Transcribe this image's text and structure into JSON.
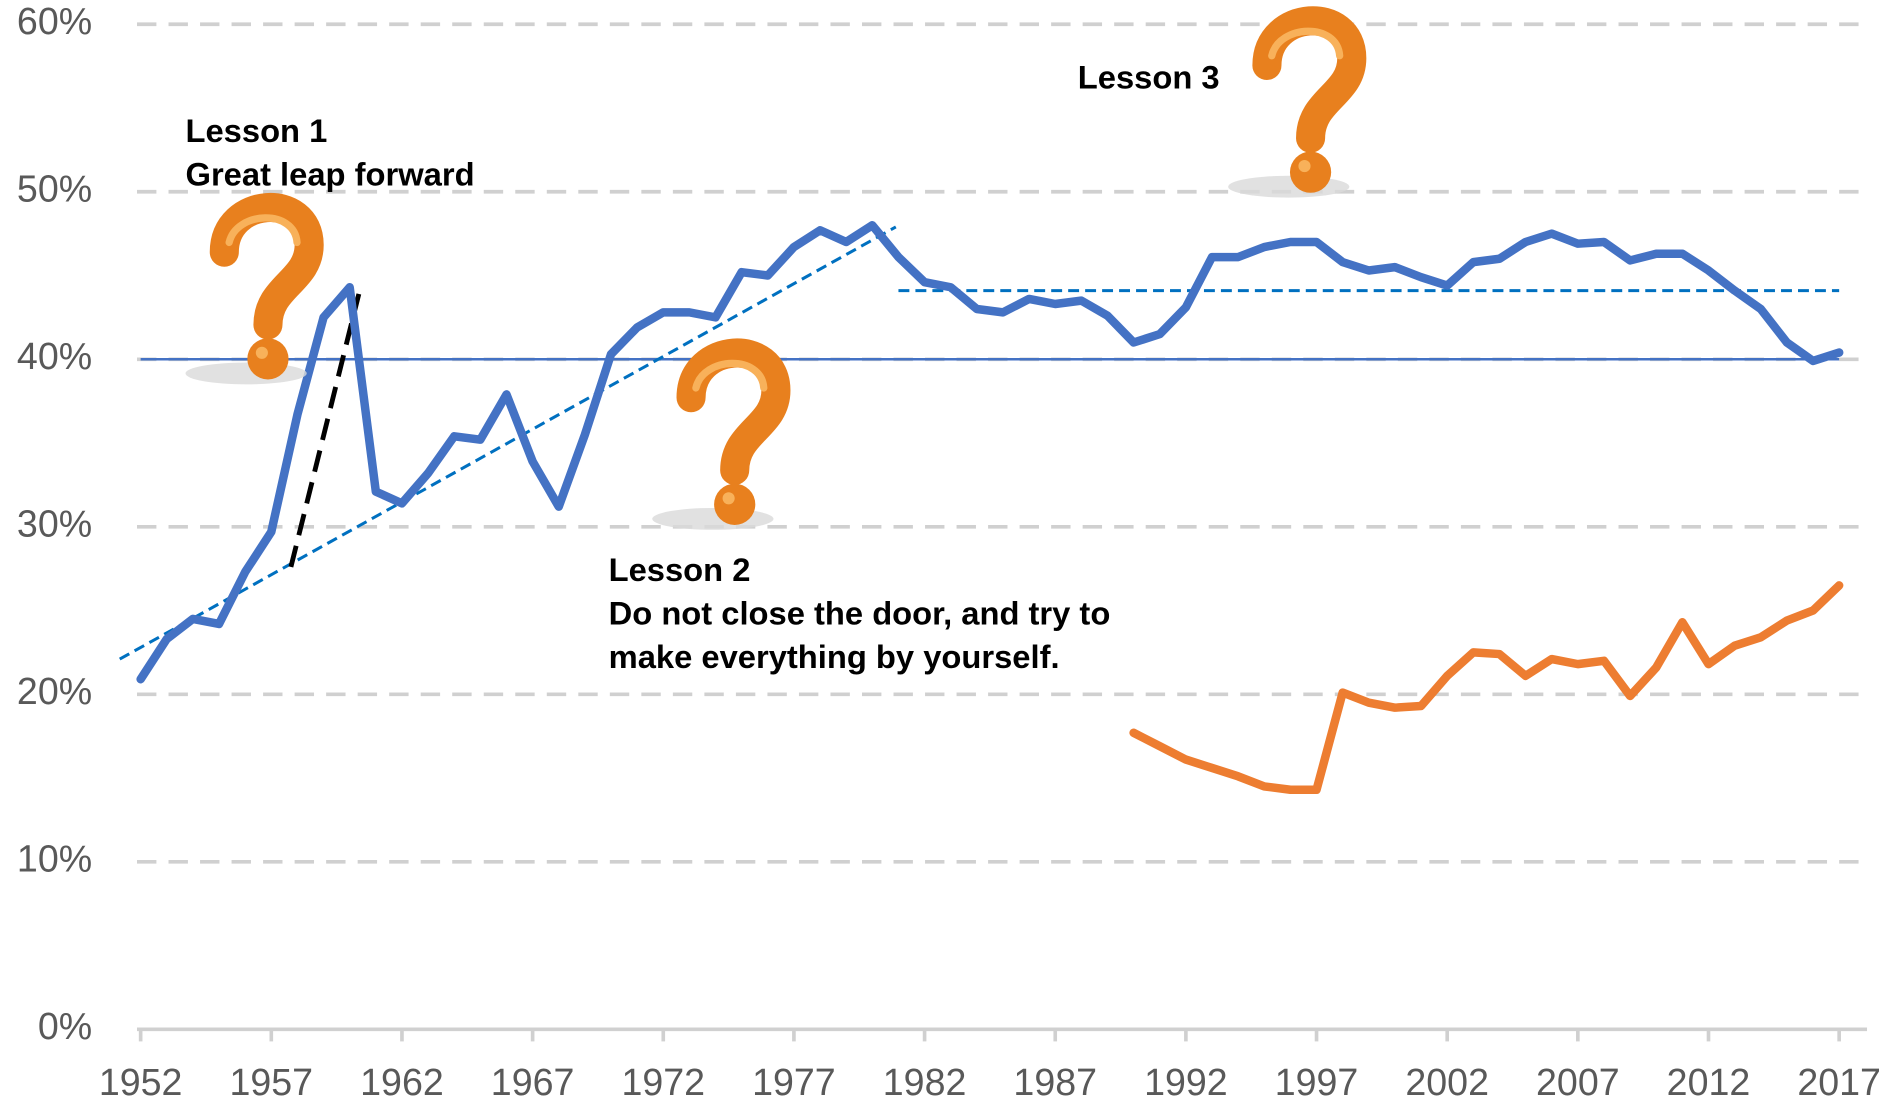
{
  "chart_data": {
    "type": "line",
    "x": [
      1952,
      1953,
      1954,
      1955,
      1956,
      1957,
      1958,
      1959,
      1960,
      1961,
      1962,
      1963,
      1964,
      1965,
      1966,
      1967,
      1968,
      1969,
      1970,
      1971,
      1972,
      1973,
      1974,
      1975,
      1976,
      1977,
      1978,
      1979,
      1980,
      1981,
      1982,
      1983,
      1984,
      1985,
      1986,
      1987,
      1988,
      1989,
      1990,
      1991,
      1992,
      1993,
      1994,
      1995,
      1996,
      1997,
      1998,
      1999,
      2000,
      2001,
      2002,
      2003,
      2004,
      2005,
      2006,
      2007,
      2008,
      2009,
      2010,
      2011,
      2012,
      2013,
      2014,
      2015,
      2016,
      2017
    ],
    "series": [
      {
        "color": "#4472c4",
        "values": [
          20.9,
          23.3,
          24.5,
          24.2,
          27.3,
          29.7,
          36.7,
          42.5,
          44.3,
          32.1,
          31.4,
          33.2,
          35.4,
          35.2,
          37.9,
          33.9,
          31.2,
          35.5,
          40.3,
          41.9,
          42.8,
          42.8,
          42.5,
          45.2,
          45.0,
          46.7,
          47.7,
          47.0,
          48.0,
          46.1,
          44.6,
          44.3,
          43.0,
          42.8,
          43.6,
          43.3,
          43.5,
          42.6,
          41.0,
          41.5,
          43.1,
          46.1,
          46.1,
          46.7,
          47.0,
          47.0,
          45.8,
          45.3,
          45.5,
          44.9,
          44.4,
          45.8,
          46.0,
          47.0,
          47.5,
          46.9,
          47.0,
          45.9,
          46.3,
          46.3,
          45.3,
          44.1,
          43.0,
          41.0,
          39.9,
          40.4
        ]
      },
      {
        "color": "#ed7d31",
        "values": [
          null,
          null,
          null,
          null,
          null,
          null,
          null,
          null,
          null,
          null,
          null,
          null,
          null,
          null,
          null,
          null,
          null,
          null,
          null,
          null,
          null,
          null,
          null,
          null,
          null,
          null,
          null,
          null,
          null,
          null,
          null,
          null,
          null,
          null,
          null,
          null,
          null,
          null,
          17.7,
          16.9,
          16.1,
          15.6,
          15.1,
          14.5,
          14.3,
          14.3,
          20.1,
          19.5,
          19.2,
          19.3,
          21.1,
          22.5,
          22.4,
          21.1,
          22.1,
          21.8,
          22.0,
          19.9,
          21.6,
          24.3,
          21.8,
          22.9,
          23.4,
          24.4,
          25.0,
          26.5
        ]
      }
    ],
    "reference_lines": [
      {
        "x": [
          1952,
          2017
        ],
        "y": [
          40,
          40
        ],
        "color": "#4472c4",
        "dash": false
      },
      {
        "x": [
          1951.2,
          1980.9
        ],
        "y": [
          22.1,
          47.9
        ],
        "color": "#0070c0",
        "dash": true
      },
      {
        "x": [
          1981,
          2017
        ],
        "y": [
          44.1,
          44.1
        ],
        "color": "#0070c0",
        "dash": true
      },
      {
        "x": [
          1957.75,
          1960.35
        ],
        "y": [
          27.6,
          43.9
        ],
        "color": "#000000",
        "dash": true
      }
    ],
    "annotations": [
      [
        "Lesson 1",
        "Great leap forward"
      ],
      [
        "Lesson 2",
        "Do not close the door, and try to",
        "make everything by yourself."
      ],
      [
        "Lesson 3"
      ]
    ],
    "xlim": [
      1952,
      2017
    ],
    "xticks": [
      1952,
      1957,
      1962,
      1967,
      1972,
      1977,
      1982,
      1987,
      1992,
      1997,
      2002,
      2007,
      2012,
      2017
    ],
    "ylim": [
      0,
      60
    ],
    "yticks": [
      {
        "value": 0,
        "label": "0%"
      },
      {
        "value": 10,
        "label": "10%"
      },
      {
        "value": 20,
        "label": "20%"
      },
      {
        "value": 30,
        "label": "30%"
      },
      {
        "value": 40,
        "label": "40%"
      },
      {
        "value": 50,
        "label": "50%"
      },
      {
        "value": 60,
        "label": "60%"
      }
    ],
    "grid": true
  }
}
